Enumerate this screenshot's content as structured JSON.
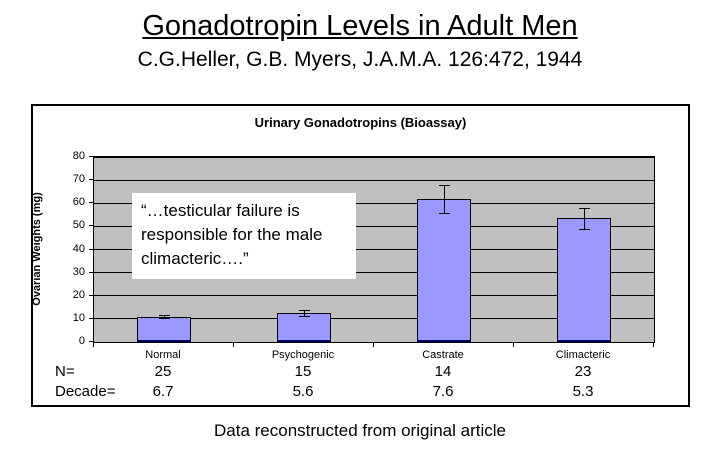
{
  "header": {
    "title": "Gonadotropin Levels in Adult Men",
    "subtitle": "C.G.Heller, G.B. Myers, J.A.M.A. 126:472, 1944"
  },
  "chart_data": {
    "type": "bar",
    "title": "Urinary Gonadotropins (Bioassay)",
    "ylabel": "Ovarian Weights (mg)",
    "xlabel": "",
    "ylim": [
      0,
      80
    ],
    "ytick_step": 10,
    "grid": true,
    "legend": "none",
    "plot_bg_color": "#c0c0c0",
    "bar_fill_color": "#9999ff",
    "bar_border_color": "#000000",
    "categories": [
      "Normal",
      "Psychogenic",
      "Castrate",
      "Climacteric"
    ],
    "values": [
      11,
      12.5,
      62,
      53.5
    ],
    "error_bars": [
      0.7,
      1.3,
      6,
      4.5
    ],
    "annotation": "“…testicular failure is responsible for the male climacteric….”",
    "table_rows": [
      {
        "label": "N=",
        "values": [
          "25",
          "15",
          "14",
          "23"
        ]
      },
      {
        "label": "Decade=",
        "values": [
          "6.7",
          "5.6",
          "7.6",
          "5.3"
        ]
      }
    ]
  },
  "caption": "Data reconstructed from original article"
}
